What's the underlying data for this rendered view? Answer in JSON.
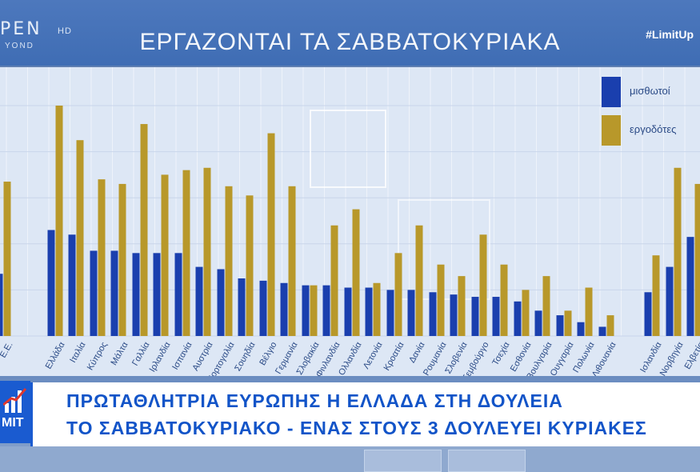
{
  "header": {
    "logo_text": "PEN",
    "logo_sub": "YOND",
    "logo_hd": "HD",
    "title": "ΕΡΓΑΖΟΝΤΑΙ ΤΑ ΣΑΒΒΑΤΟΚΥΡΙΑΚΑ",
    "hashtag": "#LimitUp"
  },
  "legend": {
    "items": [
      {
        "label": "μισθωτοί",
        "color": "#1a3fae"
      },
      {
        "label": "εργοδότες",
        "color": "#b8982a"
      }
    ]
  },
  "news": {
    "badge_text": "MIT",
    "line1": "ΠΡΩΤΑΘΛΗΤΡΙΑ ΕΥΡΩΠΗΣ Η ΕΛΛΑΔΑ ΣΤΗ ΔΟΥΛΕΙΑ",
    "line2": "ΤΟ ΣΑΒΒΑΤΟΚΥΡΙΑΚΟ - ΕΝΑΣ ΣΤΟΥΣ 3 ΔΟΥΛΕΥΕΙ ΚΥΡΙΑΚΕΣ"
  },
  "colors": {
    "employees": "#1a3fae",
    "employers": "#b8982a",
    "accent": "#1254c8"
  },
  "chart_data": {
    "type": "bar",
    "title": "",
    "xlabel": "",
    "ylabel": "",
    "ylim": [
      0,
      100
    ],
    "grid": true,
    "legend_position": "top-right",
    "categories": [
      "Ε.Ε.",
      "Ελλάδα",
      "Ιταλία",
      "Κύπρος",
      "Μάλτα",
      "Γαλλία",
      "Ιρλανδία",
      "Ισπανία",
      "Αυστρία",
      "Πορτογαλία",
      "Σουηδία",
      "Βέλγιο",
      "Γερμανία",
      "Σλοβακία",
      "Φινλανδία",
      "Ολλανδία",
      "Λετονία",
      "Κροατία",
      "Δανία",
      "Ρουμανία",
      "Σλοβενία",
      "Λουξεμβούργο",
      "Τσεχία",
      "Εσθονία",
      "Βουλγαρία",
      "Ουγγαρία",
      "Πολωνία",
      "Λιθουανία",
      "Ισλανδία",
      "Νορβηγία",
      "Ελβετία"
    ],
    "series": [
      {
        "name": "μισθωτοί",
        "values": [
          27,
          46,
          44,
          37,
          37,
          36,
          36,
          36,
          30,
          29,
          25,
          24,
          23,
          22,
          22,
          21,
          21,
          20,
          20,
          19,
          18,
          17,
          17,
          15,
          11,
          9,
          6,
          4,
          19,
          30,
          43
        ]
      },
      {
        "name": "εργοδότες",
        "values": [
          67,
          100,
          85,
          68,
          66,
          92,
          70,
          72,
          73,
          65,
          61,
          88,
          65,
          22,
          48,
          55,
          23,
          36,
          48,
          31,
          26,
          44,
          31,
          20,
          26,
          11,
          21,
          9,
          35,
          73,
          66
        ]
      }
    ]
  }
}
